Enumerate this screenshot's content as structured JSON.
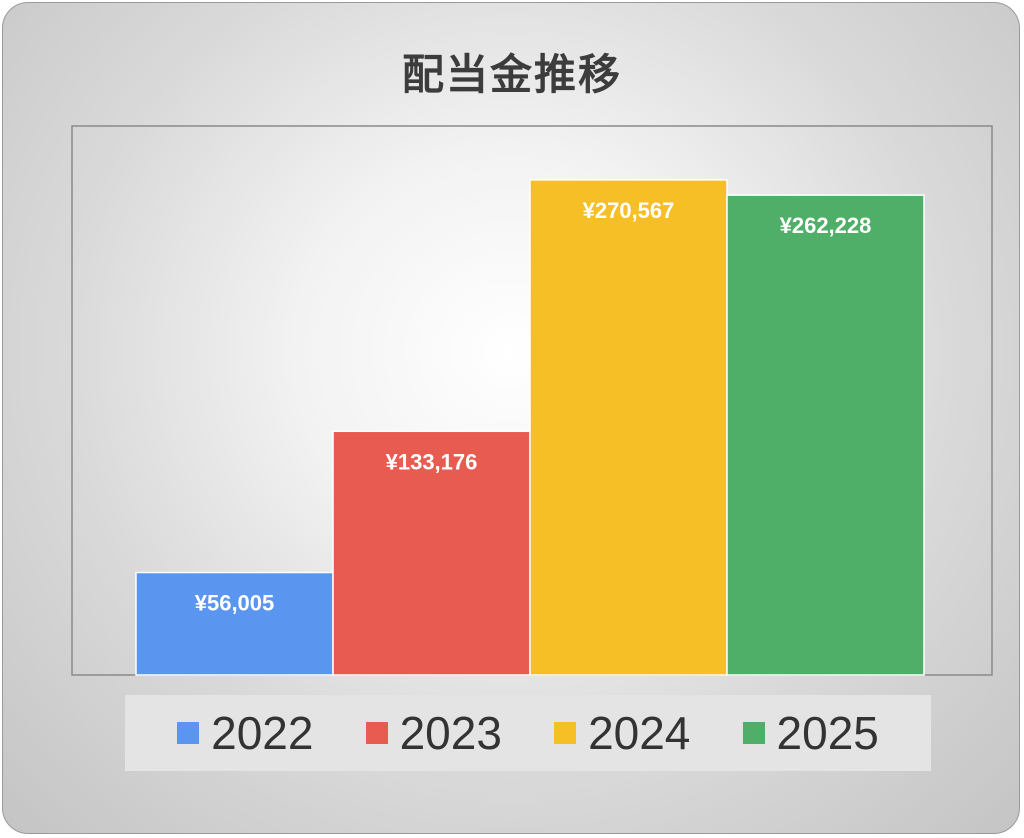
{
  "chart_data": {
    "type": "bar",
    "title": "配当金推移",
    "categories": [
      "2022",
      "2023",
      "2024",
      "2025"
    ],
    "values": [
      56005,
      133176,
      270567,
      262228
    ],
    "data_labels": [
      "¥56,005",
      "¥133,176",
      "¥270,567",
      "¥262,228"
    ],
    "colors": [
      "#5a96f0",
      "#e85b50",
      "#f6bf26",
      "#4fae67"
    ],
    "ylim": [
      0,
      300000
    ],
    "grid": false,
    "legend": "bottom",
    "legend_entries": [
      "2022",
      "2023",
      "2024",
      "2025"
    ]
  }
}
